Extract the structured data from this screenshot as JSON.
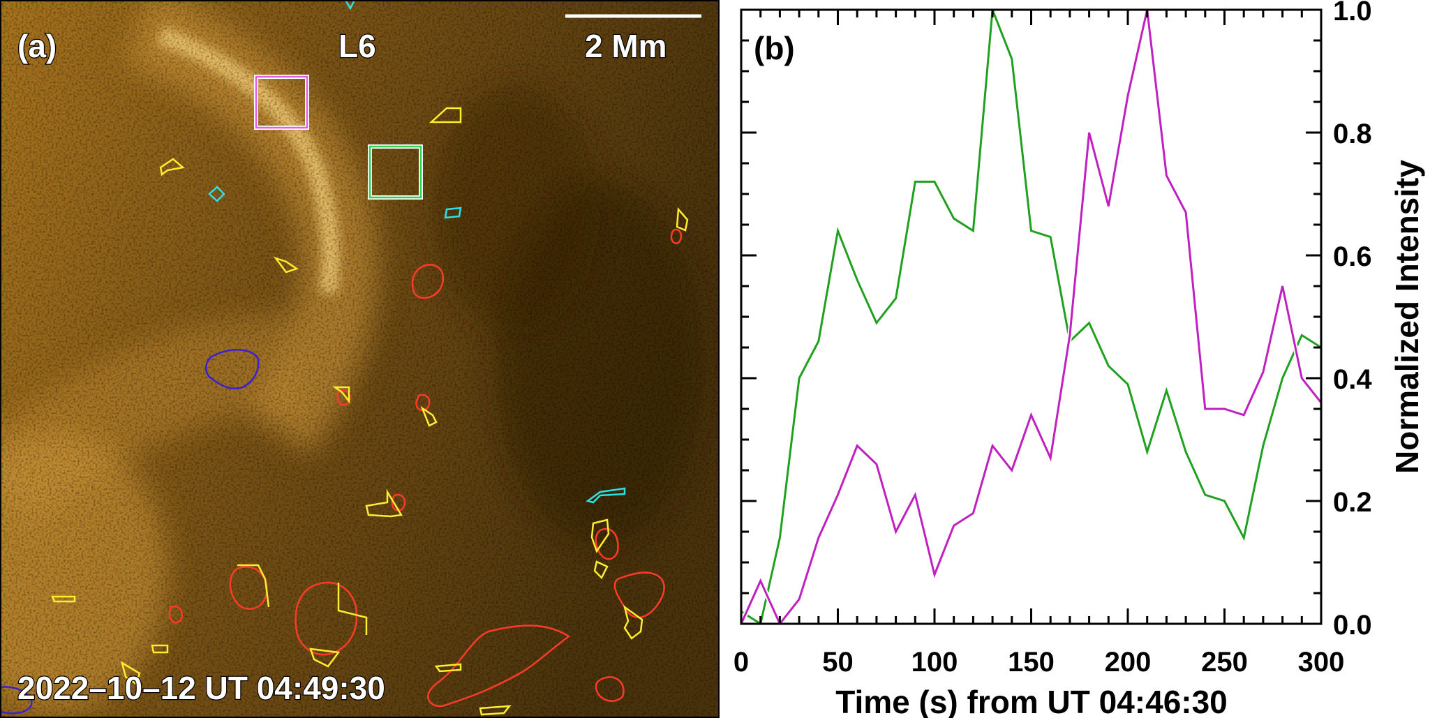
{
  "panel_a": {
    "panel_label": "(a)",
    "loop_label": "L6",
    "scale_label": "2 Mm",
    "timestamp": "2022–10–12 UT 04:49:30",
    "colors": {
      "image_base": "#6b4a12",
      "image_bright": "#e8b048",
      "box_magenta": "#e060e0",
      "box_green": "#30d050",
      "contour_red": "#ff3a2a",
      "contour_yellow": "#ffee30",
      "contour_cyan": "#30e0e8",
      "contour_blue": "#3a20d0"
    }
  },
  "panel_b": {
    "panel_label": "(b)"
  },
  "chart_data": {
    "type": "line",
    "xlabel": "Time (s) from UT 04:46:30",
    "ylabel": "Normalized Intensity",
    "xlim": [
      0,
      300
    ],
    "ylim": [
      0.0,
      1.0
    ],
    "x_ticks": [
      "0",
      "50",
      "100",
      "150",
      "200",
      "250",
      "300"
    ],
    "y_ticks": [
      "0.0",
      "0.2",
      "0.4",
      "0.6",
      "0.8",
      "1.0"
    ],
    "x": [
      0,
      10,
      20,
      30,
      40,
      50,
      60,
      70,
      80,
      90,
      100,
      110,
      120,
      130,
      140,
      150,
      160,
      170,
      180,
      190,
      200,
      210,
      220,
      230,
      240,
      250,
      260,
      270,
      280,
      290,
      300
    ],
    "series": [
      {
        "color": "#1fa01f",
        "values": [
          0.02,
          0.0,
          0.14,
          0.4,
          0.46,
          0.64,
          0.56,
          0.49,
          0.53,
          0.72,
          0.72,
          0.66,
          0.64,
          1.0,
          0.92,
          0.64,
          0.63,
          0.46,
          0.49,
          0.42,
          0.39,
          0.28,
          0.38,
          0.28,
          0.21,
          0.2,
          0.14,
          0.29,
          0.4,
          0.47,
          0.45
        ]
      },
      {
        "color": "#c020c0",
        "values": [
          0.0,
          0.07,
          0.0,
          0.04,
          0.14,
          0.21,
          0.29,
          0.26,
          0.15,
          0.21,
          0.08,
          0.16,
          0.18,
          0.29,
          0.25,
          0.34,
          0.27,
          0.47,
          0.8,
          0.68,
          0.86,
          1.0,
          0.73,
          0.67,
          0.35,
          0.35,
          0.34,
          0.41,
          0.55,
          0.4,
          0.36
        ]
      }
    ]
  }
}
